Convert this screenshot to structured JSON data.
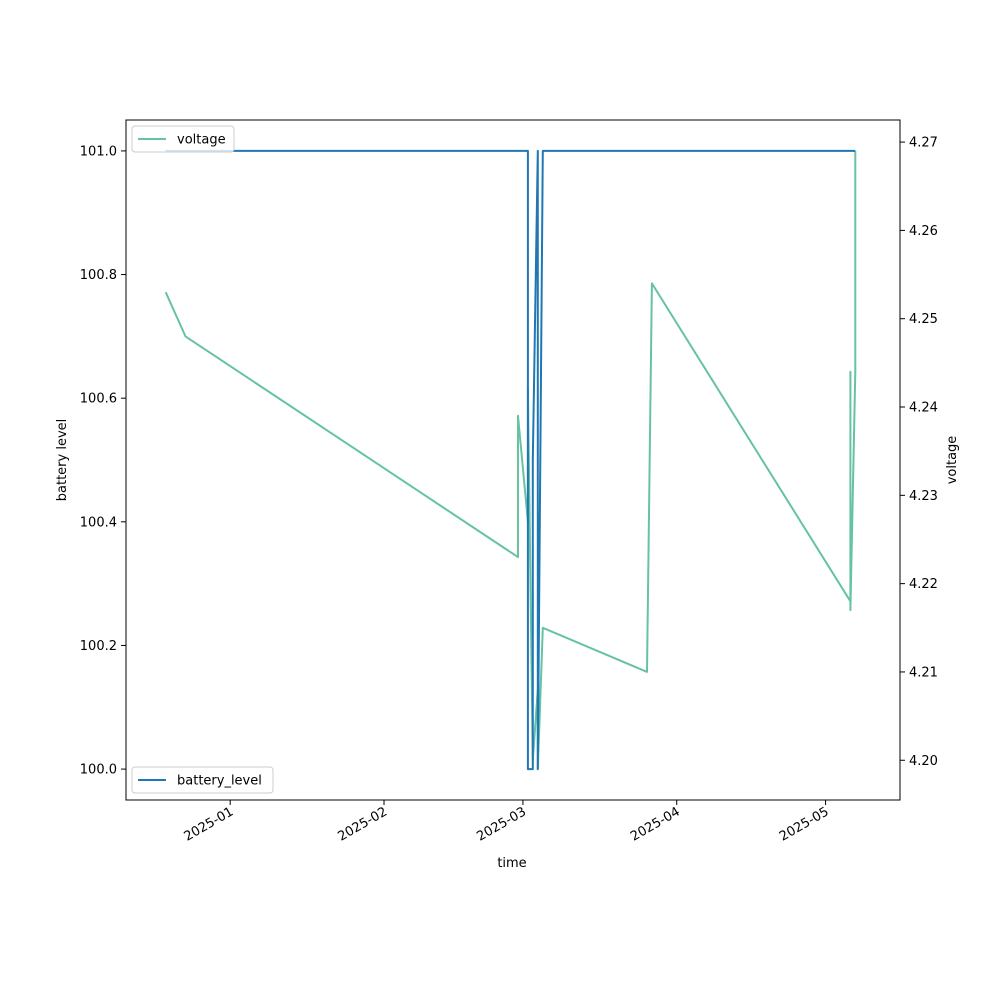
{
  "chart_data": {
    "type": "line",
    "xlabel": "time",
    "ylabel_left": "battery level",
    "ylabel_right": "voltage",
    "x_ticks": [
      "2025-01",
      "2025-02",
      "2025-03",
      "2025-04",
      "2025-05"
    ],
    "y_left_ticks": [
      "100.0",
      "100.2",
      "100.4",
      "100.6",
      "100.8",
      "101.0"
    ],
    "y_right_ticks": [
      "4.20",
      "4.21",
      "4.22",
      "4.23",
      "4.24",
      "4.25",
      "4.26",
      "4.27"
    ],
    "xlim": [
      "2024-12-11",
      "2025-05-16"
    ],
    "ylim_left": [
      99.95,
      101.05
    ],
    "ylim_right": [
      4.1955,
      4.2725
    ],
    "legend_left_placement": "lower-left",
    "legend_right_placement": "upper-left",
    "series": [
      {
        "name": "battery_level",
        "axis": "left",
        "color": "#1f77b4",
        "x": [
          "2024-12-19",
          "2025-03-02",
          "2025-03-02",
          "2025-03-03",
          "2025-03-03",
          "2025-03-04",
          "2025-03-04",
          "2025-03-05",
          "2025-05-06",
          "2025-05-06",
          "2025-05-07"
        ],
        "y": [
          101,
          101,
          100,
          100,
          100.5,
          101,
          100,
          101,
          101,
          101,
          101
        ]
      },
      {
        "name": "voltage",
        "axis": "right",
        "color": "#66c2a5",
        "x": [
          "2024-12-19",
          "2024-12-23",
          "2025-02-28",
          "2025-02-28",
          "2025-03-02",
          "2025-03-02",
          "2025-03-03",
          "2025-03-04",
          "2025-03-04",
          "2025-03-05",
          "2025-03-26",
          "2025-03-27",
          "2025-05-06",
          "2025-05-06",
          "2025-05-06",
          "2025-05-07",
          "2025-05-07"
        ],
        "y": [
          4.253,
          4.248,
          4.223,
          4.239,
          4.227,
          4.242,
          4.2,
          4.208,
          4.199,
          4.215,
          4.21,
          4.254,
          4.218,
          4.244,
          4.217,
          4.244,
          4.269
        ]
      }
    ]
  }
}
